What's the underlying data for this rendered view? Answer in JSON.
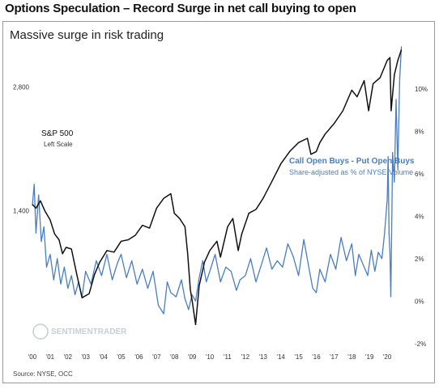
{
  "title": "Options Speculation – Record Surge in net call buying to open",
  "chart_data": {
    "type": "line",
    "subtitle": "Massive surge in risk trading",
    "x_tick_labels": [
      "'00",
      "'01",
      "'02",
      "'03",
      "'04",
      "'05",
      "'06",
      "'07",
      "'08",
      "'09",
      "'10",
      "'11",
      "'12",
      "'13",
      "'14",
      "'15",
      "'16",
      "'17",
      "'18",
      "'19",
      "'20"
    ],
    "left_axis": {
      "tick_labels": [
        "1,400",
        "2,800"
      ],
      "scale": "log",
      "ylim": [
        650,
        3600
      ]
    },
    "right_axis": {
      "tick_labels": [
        "-2%",
        "0%",
        "2%",
        "4%",
        "6%",
        "8%",
        "10%"
      ],
      "ylim": [
        -2.2,
        12.2
      ]
    },
    "series": [
      {
        "name": "S&P 500",
        "sublabel": "Left Scale",
        "axis": "left",
        "color": "#111111",
        "x": [
          2000.0,
          2000.2,
          2000.45,
          2000.7,
          2001.0,
          2001.25,
          2001.5,
          2001.7,
          2001.9,
          2002.2,
          2002.5,
          2002.8,
          2003.2,
          2003.5,
          2003.8,
          2004.2,
          2004.6,
          2005.0,
          2005.4,
          2005.8,
          2006.2,
          2006.6,
          2007.0,
          2007.4,
          2007.8,
          2008.0,
          2008.3,
          2008.6,
          2008.75,
          2008.9,
          2009.0,
          2009.2,
          2009.4,
          2009.7,
          2010.0,
          2010.4,
          2010.6,
          2011.0,
          2011.3,
          2011.6,
          2011.8,
          2012.2,
          2012.6,
          2013.0,
          2013.5,
          2014.0,
          2014.5,
          2015.0,
          2015.5,
          2015.7,
          2016.0,
          2016.2,
          2016.5,
          2017.0,
          2017.5,
          2018.0,
          2018.3,
          2018.7,
          2018.95,
          2019.2,
          2019.6,
          2020.0,
          2020.15,
          2020.22,
          2020.4,
          2020.6,
          2020.8
        ],
        "y": [
          1450,
          1420,
          1480,
          1400,
          1330,
          1230,
          1190,
          1100,
          1140,
          1130,
          980,
          860,
          880,
          980,
          1050,
          1120,
          1110,
          1180,
          1190,
          1220,
          1290,
          1270,
          1420,
          1500,
          1540,
          1380,
          1340,
          1280,
          1100,
          900,
          850,
          740,
          920,
          1050,
          1120,
          1180,
          1080,
          1280,
          1340,
          1120,
          1230,
          1380,
          1410,
          1500,
          1650,
          1820,
          1950,
          2050,
          2100,
          1920,
          1950,
          2050,
          2150,
          2280,
          2450,
          2750,
          2650,
          2900,
          2450,
          2850,
          2950,
          3250,
          3300,
          2450,
          3000,
          3250,
          3450
        ]
      },
      {
        "name": "Call Open Buys - Put Open Buys",
        "sublabel": "Share-adjusted as % of NYSE Volume",
        "axis": "right",
        "color": "#4a7ebf",
        "x": [
          2000.0,
          2000.1,
          2000.2,
          2000.35,
          2000.5,
          2000.65,
          2000.8,
          2001.0,
          2001.2,
          2001.4,
          2001.6,
          2001.8,
          2002.0,
          2002.2,
          2002.4,
          2002.6,
          2002.8,
          2003.0,
          2003.3,
          2003.6,
          2003.9,
          2004.2,
          2004.5,
          2004.8,
          2005.0,
          2005.3,
          2005.6,
          2005.9,
          2006.2,
          2006.5,
          2006.8,
          2007.1,
          2007.4,
          2007.6,
          2007.8,
          2008.1,
          2008.4,
          2008.6,
          2008.8,
          2009.0,
          2009.2,
          2009.4,
          2009.6,
          2009.8,
          2010.0,
          2010.3,
          2010.6,
          2010.9,
          2011.2,
          2011.5,
          2011.7,
          2012.0,
          2012.3,
          2012.6,
          2012.9,
          2013.2,
          2013.5,
          2013.8,
          2014.1,
          2014.4,
          2014.7,
          2015.0,
          2015.3,
          2015.6,
          2015.8,
          2016.0,
          2016.2,
          2016.5,
          2016.8,
          2017.1,
          2017.4,
          2017.7,
          2018.0,
          2018.2,
          2018.4,
          2018.7,
          2018.9,
          2019.1,
          2019.3,
          2019.5,
          2019.7,
          2019.85,
          2020.0,
          2020.05,
          2020.1,
          2020.15,
          2020.2,
          2020.25,
          2020.3,
          2020.4,
          2020.5,
          2020.6,
          2020.7,
          2020.8
        ],
        "y": [
          4.5,
          5.5,
          3.2,
          5.0,
          2.8,
          3.5,
          1.6,
          2.2,
          1.0,
          2.0,
          0.8,
          1.6,
          0.6,
          1.2,
          0.3,
          0.9,
          0.2,
          1.4,
          0.8,
          1.9,
          1.2,
          2.2,
          1.0,
          1.8,
          2.2,
          1.1,
          1.9,
          0.8,
          1.5,
          0.6,
          1.4,
          -0.2,
          -0.6,
          0.9,
          0.4,
          0.2,
          1.0,
          0.1,
          -0.4,
          0.3,
          0.0,
          1.1,
          1.9,
          0.9,
          1.4,
          2.2,
          0.9,
          1.6,
          1.4,
          0.5,
          1.0,
          1.2,
          2.0,
          0.9,
          1.7,
          2.5,
          1.5,
          1.9,
          1.6,
          2.7,
          2.1,
          1.2,
          2.9,
          1.5,
          0.6,
          0.4,
          1.5,
          0.9,
          2.2,
          1.5,
          3.0,
          1.9,
          2.7,
          1.2,
          2.2,
          1.6,
          1.2,
          2.4,
          1.4,
          2.3,
          2.0,
          3.2,
          4.8,
          6.8,
          3.2,
          2.3,
          0.2,
          3.4,
          7.0,
          5.6,
          9.5,
          6.2,
          10.4,
          12.0
        ]
      }
    ],
    "annotations": [
      {
        "text": "S&P 500",
        "sub": "Left Scale"
      },
      {
        "text": "Call Open Buys - Put Open Buys",
        "sub": "Share-adjusted as % of NYSE Volume"
      }
    ],
    "watermark": "SENTIMENTRADER",
    "source": "Source: NYSE, OCC",
    "grid": false
  }
}
